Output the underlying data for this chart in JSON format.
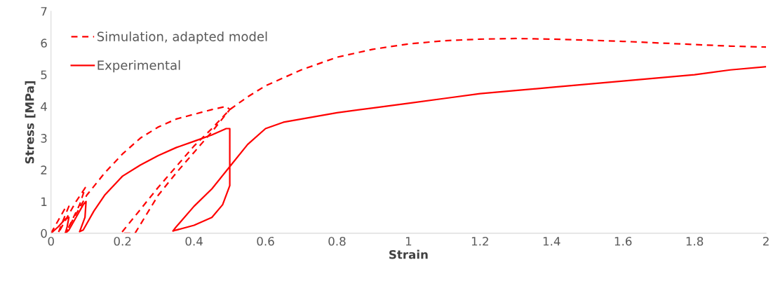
{
  "chart_data": {
    "type": "line",
    "xlabel": "Strain",
    "ylabel": "Stress [MPa]",
    "xlim": [
      0,
      2
    ],
    "ylim": [
      0,
      7
    ],
    "xticks": [
      0,
      0.2,
      0.4,
      0.6,
      0.8,
      1,
      1.2,
      1.4,
      1.6,
      1.8,
      2
    ],
    "yticks": [
      0,
      1,
      2,
      3,
      4,
      5,
      6,
      7
    ],
    "grid": false,
    "legend": "top left",
    "marker": "none",
    "series": [
      {
        "name": "Simulation, adapted model",
        "color": "#ff0000",
        "line_style": "dashed",
        "x": [
          0,
          0.02,
          0.04,
          0.05,
          0.03,
          0.02,
          0.04,
          0.07,
          0.096,
          0.08,
          0.05,
          0.04,
          0.06,
          0.1,
          0.15,
          0.2,
          0.25,
          0.3,
          0.35,
          0.4,
          0.45,
          0.49,
          0.5,
          0.45,
          0.4,
          0.35,
          0.3,
          0.235,
          0.196,
          0.25,
          0.3,
          0.35,
          0.4,
          0.45,
          0.5,
          0.55,
          0.6,
          0.7,
          0.8,
          0.9,
          1.0,
          1.1,
          1.2,
          1.3,
          1.4,
          1.5,
          1.6,
          1.7,
          1.8,
          1.9,
          2.0
        ],
        "values": [
          0,
          0.4,
          0.8,
          0.85,
          0.3,
          0,
          0.4,
          1.0,
          1.44,
          0.9,
          0.2,
          0,
          0.4,
          1.2,
          1.9,
          2.5,
          3.0,
          3.35,
          3.6,
          3.75,
          3.9,
          4.0,
          3.9,
          3.2,
          2.55,
          1.9,
          1.2,
          0,
          0,
          0.75,
          1.45,
          2.1,
          2.75,
          3.3,
          3.9,
          4.3,
          4.65,
          5.15,
          5.55,
          5.8,
          5.97,
          6.07,
          6.12,
          6.14,
          6.12,
          6.09,
          6.05,
          6.0,
          5.95,
          5.9,
          5.87
        ]
      },
      {
        "name": "Experimental",
        "color": "#ff0000",
        "line_style": "solid",
        "x": [
          0,
          0.02,
          0.04,
          0.05,
          0.045,
          0.04,
          0.05,
          0.07,
          0.09,
          0.098,
          0.095,
          0.085,
          0.08,
          0.09,
          0.1,
          0.12,
          0.15,
          0.2,
          0.25,
          0.3,
          0.35,
          0.4,
          0.45,
          0.49,
          0.5,
          0.5,
          0.5,
          0.48,
          0.45,
          0.4,
          0.35,
          0.341,
          0.35,
          0.4,
          0.45,
          0.5,
          0.55,
          0.6,
          0.65,
          0.7,
          0.8,
          0.9,
          1.0,
          1.1,
          1.2,
          1.3,
          1.4,
          1.5,
          1.6,
          1.7,
          1.8,
          1.9,
          2.0
        ],
        "values": [
          0,
          0.2,
          0.45,
          0.5,
          0.2,
          0,
          0.1,
          0.5,
          0.9,
          1.0,
          0.5,
          0.2,
          0.05,
          0.1,
          0.3,
          0.7,
          1.2,
          1.8,
          2.15,
          2.45,
          2.7,
          2.9,
          3.1,
          3.3,
          3.3,
          2.5,
          1.5,
          0.9,
          0.5,
          0.25,
          0.1,
          0.07,
          0.2,
          0.85,
          1.4,
          2.1,
          2.8,
          3.3,
          3.5,
          3.6,
          3.8,
          3.95,
          4.1,
          4.25,
          4.4,
          4.5,
          4.6,
          4.7,
          4.8,
          4.9,
          5.0,
          5.15,
          5.25
        ]
      }
    ]
  }
}
